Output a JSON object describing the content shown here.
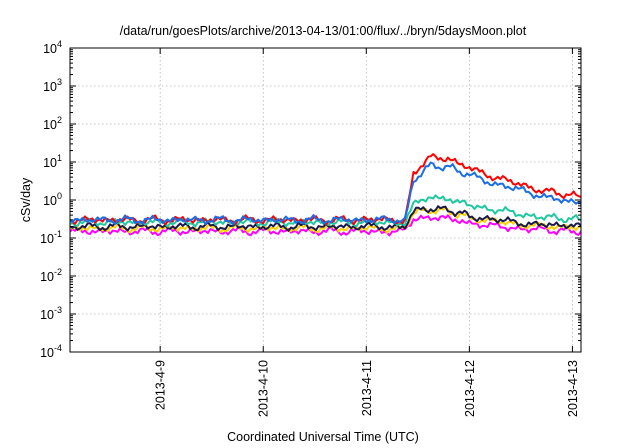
{
  "chart_data": {
    "type": "line",
    "title": "/data/run/goesPlots/archive/2013-04-13/01:00/flux/../bryn/5daysMoon.plot",
    "xlabel": "Coordinated Universal Time (UTC)",
    "ylabel": "cSv/day",
    "yscale": "log",
    "ylim": [
      0.0001,
      10000
    ],
    "xlim": [
      "2013-04-08T03:00",
      "2013-04-13T02:00"
    ],
    "grid": true,
    "x_ticks": [
      "2013-4-9",
      "2013-4-10",
      "2013-4-11",
      "2013-4-12",
      "2013-4-13"
    ],
    "y_ticks": [
      {
        "base": "10",
        "exp": "4"
      },
      {
        "base": "10",
        "exp": "3"
      },
      {
        "base": "10",
        "exp": "2"
      },
      {
        "base": "10",
        "exp": "1"
      },
      {
        "base": "10",
        "exp": "0"
      },
      {
        "base": "10",
        "exp": "-1"
      },
      {
        "base": "10",
        "exp": "-2"
      },
      {
        "base": "10",
        "exp": "-3"
      },
      {
        "base": "10",
        "exp": "-4"
      }
    ],
    "series": [
      {
        "color": "#ff00ff",
        "values": [
          [
            "2013-04-08T03:00",
            0.15
          ],
          [
            "2013-04-09T00:00",
            0.15
          ],
          [
            "2013-04-10T00:00",
            0.15
          ],
          [
            "2013-04-11T00:00",
            0.15
          ],
          [
            "2013-04-11T09:00",
            0.15
          ],
          [
            "2013-04-11T11:00",
            0.3
          ],
          [
            "2013-04-11T15:00",
            0.35
          ],
          [
            "2013-04-11T19:00",
            0.33
          ],
          [
            "2013-04-12T00:00",
            0.25
          ],
          [
            "2013-04-12T06:00",
            0.2
          ],
          [
            "2013-04-12T12:00",
            0.18
          ],
          [
            "2013-04-12T18:00",
            0.16
          ],
          [
            "2013-04-13T02:00",
            0.15
          ]
        ]
      },
      {
        "color": "#ffd000",
        "values": [
          [
            "2013-04-08T03:00",
            0.18
          ],
          [
            "2013-04-09T00:00",
            0.18
          ],
          [
            "2013-04-10T00:00",
            0.18
          ],
          [
            "2013-04-11T00:00",
            0.18
          ],
          [
            "2013-04-11T09:00",
            0.18
          ],
          [
            "2013-04-11T11:00",
            0.45
          ],
          [
            "2013-04-11T15:00",
            0.55
          ],
          [
            "2013-04-11T19:00",
            0.5
          ],
          [
            "2013-04-12T00:00",
            0.35
          ],
          [
            "2013-04-12T06:00",
            0.27
          ],
          [
            "2013-04-12T12:00",
            0.23
          ],
          [
            "2013-04-12T18:00",
            0.2
          ],
          [
            "2013-04-13T02:00",
            0.19
          ]
        ]
      },
      {
        "color": "#1a1a4a",
        "values": [
          [
            "2013-04-08T03:00",
            0.2
          ],
          [
            "2013-04-09T00:00",
            0.2
          ],
          [
            "2013-04-10T00:00",
            0.2
          ],
          [
            "2013-04-11T00:00",
            0.2
          ],
          [
            "2013-04-11T09:00",
            0.2
          ],
          [
            "2013-04-11T11:00",
            0.5
          ],
          [
            "2013-04-11T15:00",
            0.6
          ],
          [
            "2013-04-11T19:00",
            0.55
          ],
          [
            "2013-04-12T00:00",
            0.38
          ],
          [
            "2013-04-12T06:00",
            0.3
          ],
          [
            "2013-04-12T12:00",
            0.25
          ],
          [
            "2013-04-12T18:00",
            0.22
          ],
          [
            "2013-04-13T02:00",
            0.21
          ]
        ]
      },
      {
        "color": "#20c8a0",
        "values": [
          [
            "2013-04-08T03:00",
            0.26
          ],
          [
            "2013-04-09T00:00",
            0.26
          ],
          [
            "2013-04-10T00:00",
            0.26
          ],
          [
            "2013-04-11T00:00",
            0.26
          ],
          [
            "2013-04-11T09:00",
            0.26
          ],
          [
            "2013-04-11T11:00",
            0.8
          ],
          [
            "2013-04-11T15:00",
            1.2
          ],
          [
            "2013-04-11T19:00",
            1.05
          ],
          [
            "2013-04-12T00:00",
            0.75
          ],
          [
            "2013-04-12T06:00",
            0.55
          ],
          [
            "2013-04-12T12:00",
            0.42
          ],
          [
            "2013-04-12T18:00",
            0.35
          ],
          [
            "2013-04-13T02:00",
            0.3
          ]
        ]
      },
      {
        "color": "#ff0000",
        "values": [
          [
            "2013-04-08T03:00",
            0.3
          ],
          [
            "2013-04-09T00:00",
            0.3
          ],
          [
            "2013-04-10T00:00",
            0.3
          ],
          [
            "2013-04-11T00:00",
            0.3
          ],
          [
            "2013-04-11T09:00",
            0.3
          ],
          [
            "2013-04-11T11:00",
            5.0
          ],
          [
            "2013-04-11T15:00",
            14.0
          ],
          [
            "2013-04-11T19:00",
            12.0
          ],
          [
            "2013-04-12T00:00",
            7.0
          ],
          [
            "2013-04-12T06:00",
            4.0
          ],
          [
            "2013-04-12T12:00",
            2.5
          ],
          [
            "2013-04-12T18:00",
            1.7
          ],
          [
            "2013-04-13T02:00",
            1.2
          ]
        ]
      },
      {
        "color": "#1a6ee6",
        "values": [
          [
            "2013-04-08T03:00",
            0.3
          ],
          [
            "2013-04-09T00:00",
            0.3
          ],
          [
            "2013-04-10T00:00",
            0.3
          ],
          [
            "2013-04-11T00:00",
            0.3
          ],
          [
            "2013-04-11T09:00",
            0.3
          ],
          [
            "2013-04-11T11:00",
            3.5
          ],
          [
            "2013-04-11T15:00",
            8.0
          ],
          [
            "2013-04-11T19:00",
            7.5
          ],
          [
            "2013-04-12T00:00",
            4.5
          ],
          [
            "2013-04-12T06:00",
            2.7
          ],
          [
            "2013-04-12T12:00",
            1.8
          ],
          [
            "2013-04-12T18:00",
            1.2
          ],
          [
            "2013-04-13T02:00",
            0.8
          ]
        ]
      }
    ]
  }
}
